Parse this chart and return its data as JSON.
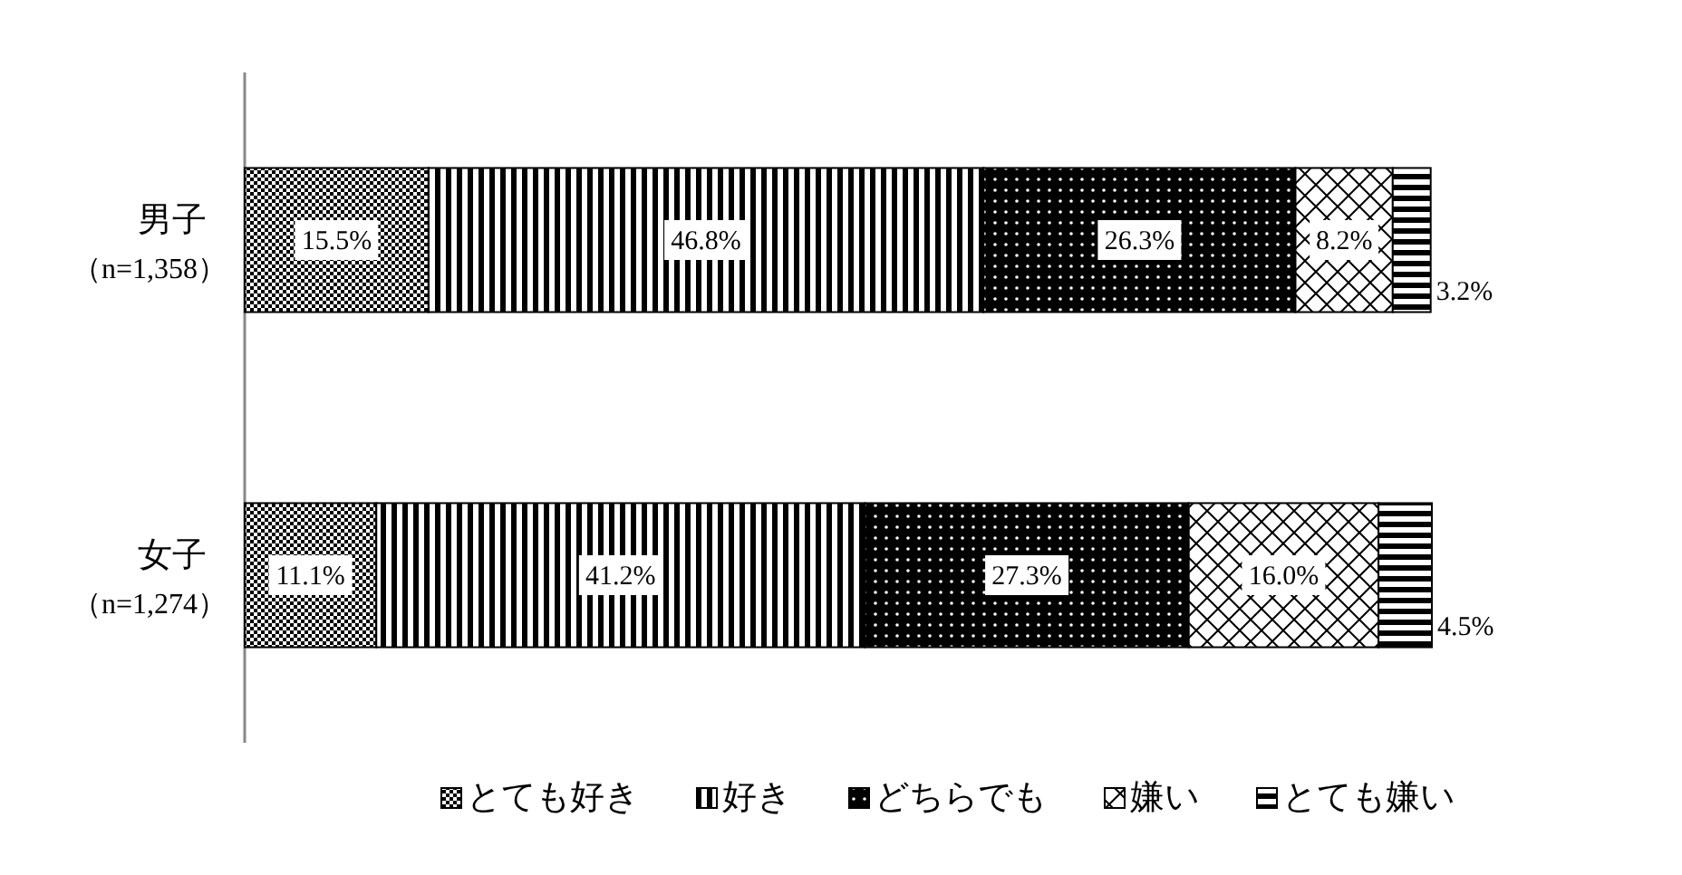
{
  "chart_data": {
    "type": "bar",
    "orientation": "horizontal",
    "stacked": true,
    "legend": "bottom",
    "categories": [
      "男子（n=1,358）",
      "女子（n=1,274）"
    ],
    "series": [
      {
        "name": "とても好き",
        "color": "#000000",
        "values": [
          15.5,
          11.1
        ],
        "value_labels": [
          "15.5%",
          "11.1%"
        ]
      },
      {
        "name": "好き",
        "color": "#000000",
        "values": [
          46.8,
          41.2
        ],
        "value_labels": [
          "46.8%",
          "41.2%"
        ]
      },
      {
        "name": "どちらでも",
        "color": "#000000",
        "values": [
          26.3,
          27.3
        ],
        "value_labels": [
          "26.3%",
          "27.3%"
        ]
      },
      {
        "name": "嫌い",
        "color": "#000000",
        "values": [
          8.2,
          16.0
        ],
        "value_labels": [
          "8.2%",
          "16.0%"
        ]
      },
      {
        "name": "とても嫌い",
        "color": "#000000",
        "values": [
          3.2,
          4.5
        ],
        "value_labels": [
          "3.2%",
          "4.5%"
        ]
      }
    ]
  }
}
